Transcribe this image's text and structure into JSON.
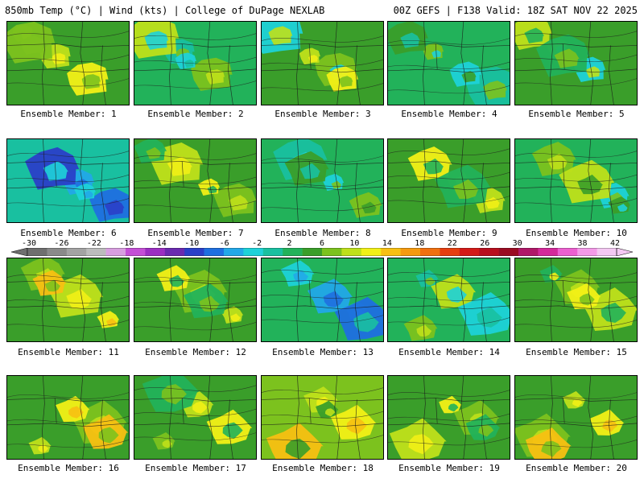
{
  "header": {
    "title_left": "850mb Temp (°C) | Wind (kts) | College of DuPage NEXLAB",
    "title_right": "00Z GEFS | F138 Valid: 18Z SAT NOV 22 2025"
  },
  "colorbar": {
    "labels": [
      "-30",
      "-26",
      "-22",
      "-18",
      "-14",
      "-10",
      "-6",
      "-2",
      "2",
      "6",
      "10",
      "14",
      "18",
      "22",
      "26",
      "30",
      "34",
      "38",
      "42"
    ],
    "colors": [
      "#6f6f6f",
      "#8a8a8a",
      "#a3a3a3",
      "#bcbcbc",
      "#d89ee0",
      "#c44fd6",
      "#9b2fc2",
      "#6a2ab0",
      "#2a3fc8",
      "#1f6fe0",
      "#22a8e8",
      "#1ed2d8",
      "#19c0a0",
      "#22b25a",
      "#3a9e2a",
      "#7cc21e",
      "#bfe01a",
      "#f2f016",
      "#f7c012",
      "#f59a10",
      "#f07010",
      "#e63e10",
      "#d41a18",
      "#b80f1e",
      "#9a0c22",
      "#b01868",
      "#d42a9a",
      "#ec60d0",
      "#f49ae8",
      "#f4c8f2"
    ]
  },
  "members": [
    {
      "label": "Ensemble Member: 1",
      "base": "#3a9e2a",
      "accents": [
        "#7cc21e",
        "#bfe01a",
        "#f2f016",
        "#7cc21e"
      ]
    },
    {
      "label": "Ensemble Member: 2",
      "base": "#22b25a",
      "accents": [
        "#19c0a0",
        "#7cc21e",
        "#bfe01a",
        "#1ed2d8"
      ]
    },
    {
      "label": "Ensemble Member: 3",
      "base": "#3a9e2a",
      "accents": [
        "#7cc21e",
        "#1ed2d8",
        "#bfe01a",
        "#f2f016"
      ]
    },
    {
      "label": "Ensemble Member: 4",
      "base": "#22b25a",
      "accents": [
        "#19c0a0",
        "#7cc21e",
        "#1ed2d8",
        "#3a9e2a"
      ]
    },
    {
      "label": "Ensemble Member: 5",
      "base": "#3a9e2a",
      "accents": [
        "#7cc21e",
        "#1ed2d8",
        "#bfe01a",
        "#22b25a"
      ]
    },
    {
      "label": "Ensemble Member: 6",
      "base": "#19c0a0",
      "accents": [
        "#22a8e8",
        "#1f6fe0",
        "#2a3fc8",
        "#1ed2d8"
      ]
    },
    {
      "label": "Ensemble Member: 7",
      "base": "#3a9e2a",
      "accents": [
        "#7cc21e",
        "#bfe01a",
        "#f2f016",
        "#22b25a"
      ]
    },
    {
      "label": "Ensemble Member: 8",
      "base": "#22b25a",
      "accents": [
        "#19c0a0",
        "#1ed2d8",
        "#7cc21e",
        "#3a9e2a"
      ]
    },
    {
      "label": "Ensemble Member: 9",
      "base": "#3a9e2a",
      "accents": [
        "#7cc21e",
        "#bfe01a",
        "#f2f016",
        "#22b25a"
      ]
    },
    {
      "label": "Ensemble Member: 10",
      "base": "#22b25a",
      "accents": [
        "#1ed2d8",
        "#7cc21e",
        "#bfe01a",
        "#3a9e2a"
      ]
    },
    {
      "label": "Ensemble Member: 11",
      "base": "#3a9e2a",
      "accents": [
        "#7cc21e",
        "#bfe01a",
        "#f2f016",
        "#f7c012"
      ]
    },
    {
      "label": "Ensemble Member: 12",
      "base": "#3a9e2a",
      "accents": [
        "#7cc21e",
        "#bfe01a",
        "#f2f016",
        "#22b25a"
      ]
    },
    {
      "label": "Ensemble Member: 13",
      "base": "#22b25a",
      "accents": [
        "#19c0a0",
        "#1ed2d8",
        "#22a8e8",
        "#1f6fe0"
      ]
    },
    {
      "label": "Ensemble Member: 14",
      "base": "#22b25a",
      "accents": [
        "#7cc21e",
        "#bfe01a",
        "#1ed2d8",
        "#19c0a0"
      ]
    },
    {
      "label": "Ensemble Member: 15",
      "base": "#3a9e2a",
      "accents": [
        "#7cc21e",
        "#bfe01a",
        "#22b25a",
        "#f2f016"
      ]
    },
    {
      "label": "Ensemble Member: 16",
      "base": "#3a9e2a",
      "accents": [
        "#7cc21e",
        "#bfe01a",
        "#f2f016",
        "#f7c012"
      ]
    },
    {
      "label": "Ensemble Member: 17",
      "base": "#3a9e2a",
      "accents": [
        "#7cc21e",
        "#bfe01a",
        "#f2f016",
        "#22b25a"
      ]
    },
    {
      "label": "Ensemble Member: 18",
      "base": "#7cc21e",
      "accents": [
        "#bfe01a",
        "#f2f016",
        "#f7c012",
        "#3a9e2a"
      ]
    },
    {
      "label": "Ensemble Member: 19",
      "base": "#3a9e2a",
      "accents": [
        "#7cc21e",
        "#bfe01a",
        "#f2f016",
        "#22b25a"
      ]
    },
    {
      "label": "Ensemble Member: 20",
      "base": "#3a9e2a",
      "accents": [
        "#7cc21e",
        "#bfe01a",
        "#f2f016",
        "#f7c012"
      ]
    }
  ]
}
